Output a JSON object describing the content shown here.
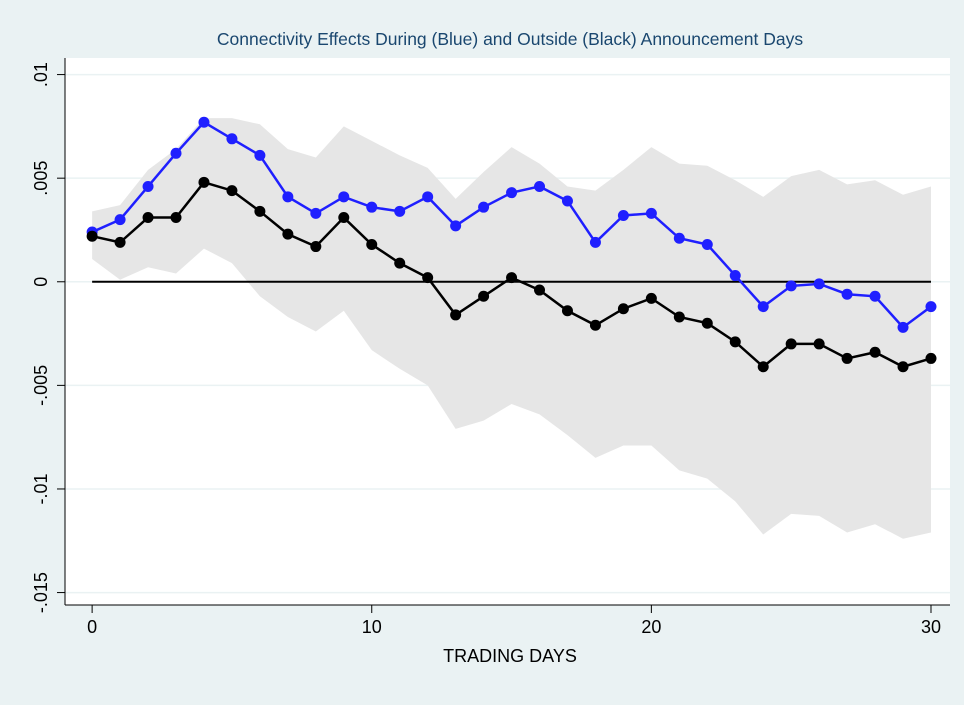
{
  "chart_data": {
    "type": "line",
    "title": "Connectivity Effects During (Blue) and Outside (Black) Announcement Days",
    "x_label": "TRADING DAYS",
    "x": [
      0,
      1,
      2,
      3,
      4,
      5,
      6,
      7,
      8,
      9,
      10,
      11,
      12,
      13,
      14,
      15,
      16,
      17,
      18,
      19,
      20,
      21,
      22,
      23,
      24,
      25,
      26,
      27,
      28,
      29,
      30
    ],
    "series": [
      {
        "color": "#1f1fff",
        "values": [
          0.0024,
          0.003,
          0.0046,
          0.0062,
          0.0077,
          0.0069,
          0.0061,
          0.0041,
          0.0033,
          0.0041,
          0.0036,
          0.0034,
          0.0041,
          0.0027,
          0.0036,
          0.0043,
          0.0046,
          0.0039,
          0.0019,
          0.0032,
          0.0033,
          0.0021,
          0.0018,
          0.0003,
          -0.0012,
          -0.0002,
          -0.0001,
          -0.0006,
          -0.0007,
          -0.0022,
          -0.0012
        ]
      },
      {
        "color": "#000000",
        "values": [
          0.0022,
          0.0019,
          0.0031,
          0.0031,
          0.0048,
          0.0044,
          0.0034,
          0.0023,
          0.0017,
          0.0031,
          0.0018,
          0.0009,
          0.0002,
          -0.0016,
          -0.0007,
          0.0002,
          -0.0004,
          -0.0014,
          -0.0021,
          -0.0013,
          -0.0008,
          -0.0017,
          -0.002,
          -0.0029,
          -0.0041,
          -0.003,
          -0.003,
          -0.0037,
          -0.0034,
          -0.0041,
          -0.0037
        ]
      }
    ],
    "band": {
      "color": "#e6e6e6",
      "upper": [
        0.0034,
        0.0037,
        0.0054,
        0.0064,
        0.0079,
        0.0079,
        0.0076,
        0.0064,
        0.006,
        0.0075,
        0.0068,
        0.0061,
        0.0055,
        0.004,
        0.0053,
        0.0065,
        0.0057,
        0.0046,
        0.0044,
        0.0054,
        0.0065,
        0.0057,
        0.0056,
        0.0049,
        0.0041,
        0.0051,
        0.0054,
        0.0047,
        0.0049,
        0.0042,
        0.0046
      ],
      "lower": [
        0.0011,
        0.0001,
        0.0007,
        0.0004,
        0.0016,
        0.0009,
        -0.0007,
        -0.0017,
        -0.0024,
        -0.0014,
        -0.0033,
        -0.0042,
        -0.005,
        -0.0071,
        -0.0067,
        -0.0059,
        -0.0064,
        -0.0074,
        -0.0085,
        -0.0079,
        -0.0079,
        -0.0091,
        -0.0095,
        -0.0106,
        -0.0122,
        -0.0112,
        -0.0113,
        -0.0121,
        -0.0117,
        -0.0124,
        -0.0121
      ]
    },
    "reference_line": 0,
    "xlim": [
      -0.97,
      30.68
    ],
    "xticks": [
      0,
      10,
      20,
      30
    ],
    "ylim": [
      -0.0156,
      0.0108
    ],
    "yticks": [
      {
        "value": -0.015,
        "label": "-.015"
      },
      {
        "value": -0.01,
        "label": "-.01"
      },
      {
        "value": -0.005,
        "label": "-.005"
      },
      0,
      {
        "value": 0.005,
        "label": ".005"
      },
      {
        "value": 0.01,
        "label": ".01"
      }
    ],
    "grid": true
  }
}
